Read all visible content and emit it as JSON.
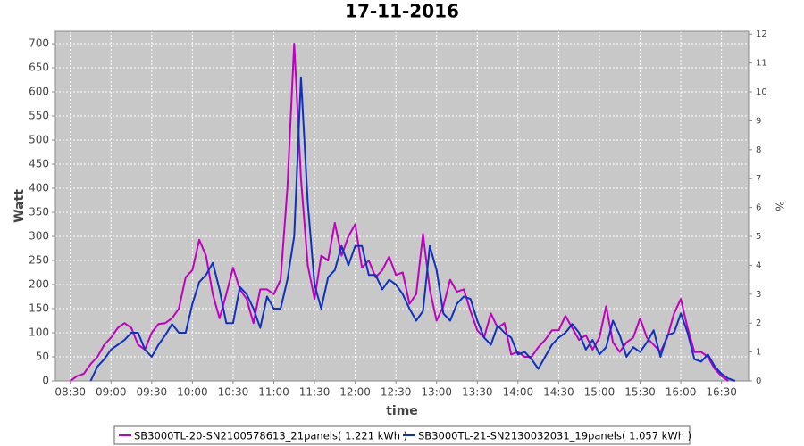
{
  "chart_data": {
    "type": "line",
    "title": "17-11-2016",
    "xlabel": "time",
    "ylabel": "Watt",
    "y2label": "%",
    "x": [
      "08:30",
      "08:35",
      "08:40",
      "08:45",
      "08:50",
      "08:55",
      "09:00",
      "09:05",
      "09:10",
      "09:15",
      "09:20",
      "09:25",
      "09:30",
      "09:35",
      "09:40",
      "09:45",
      "09:50",
      "09:55",
      "10:00",
      "10:05",
      "10:10",
      "10:15",
      "10:20",
      "10:25",
      "10:30",
      "10:35",
      "10:40",
      "10:45",
      "10:50",
      "10:55",
      "11:00",
      "11:05",
      "11:10",
      "11:15",
      "11:20",
      "11:25",
      "11:30",
      "11:35",
      "11:40",
      "11:45",
      "11:50",
      "11:55",
      "12:00",
      "12:05",
      "12:10",
      "12:15",
      "12:20",
      "12:25",
      "12:30",
      "12:35",
      "12:40",
      "12:45",
      "12:50",
      "12:55",
      "13:00",
      "13:05",
      "13:10",
      "13:15",
      "13:20",
      "13:25",
      "13:30",
      "13:35",
      "13:40",
      "13:45",
      "13:50",
      "13:55",
      "14:00",
      "14:05",
      "14:10",
      "14:15",
      "14:20",
      "14:25",
      "14:30",
      "14:35",
      "14:40",
      "14:45",
      "14:50",
      "14:55",
      "15:00",
      "15:05",
      "15:10",
      "15:15",
      "15:20",
      "15:25",
      "15:30",
      "15:35",
      "15:40",
      "15:45",
      "15:50",
      "15:55",
      "16:00",
      "16:05",
      "16:10",
      "16:15",
      "16:20",
      "16:25",
      "16:30",
      "16:35",
      "16:40"
    ],
    "series": [
      {
        "name": "SB3000TL-20-SN2100578613_21panels( 1.221 kWh )",
        "color": "#c000c0",
        "values": [
          0,
          10,
          15,
          35,
          50,
          75,
          90,
          110,
          120,
          110,
          75,
          65,
          100,
          118,
          120,
          130,
          150,
          215,
          230,
          293,
          260,
          180,
          130,
          180,
          235,
          190,
          170,
          120,
          190,
          190,
          180,
          210,
          400,
          700,
          420,
          240,
          170,
          260,
          250,
          328,
          260,
          300,
          325,
          235,
          250,
          215,
          230,
          258,
          220,
          225,
          160,
          180,
          305,
          190,
          125,
          155,
          210,
          185,
          190,
          145,
          105,
          90,
          140,
          110,
          120,
          55,
          60,
          50,
          50,
          70,
          85,
          105,
          105,
          135,
          110,
          85,
          95,
          65,
          90,
          155,
          80,
          60,
          80,
          90,
          130,
          90,
          75,
          60,
          90,
          140,
          170,
          110,
          60,
          60,
          50,
          25,
          10,
          0,
          null
        ]
      },
      {
        "name": "SB3000TL-21-SN2130032031_19panels( 1.057 kWh )",
        "color": "#1030c0",
        "values": [
          null,
          null,
          null,
          0,
          30,
          45,
          65,
          75,
          85,
          100,
          100,
          65,
          50,
          75,
          95,
          118,
          100,
          100,
          160,
          205,
          220,
          245,
          190,
          120,
          120,
          195,
          180,
          150,
          110,
          175,
          150,
          150,
          210,
          300,
          630,
          370,
          200,
          150,
          215,
          230,
          280,
          240,
          280,
          280,
          220,
          220,
          190,
          210,
          200,
          180,
          150,
          125,
          145,
          280,
          230,
          140,
          125,
          160,
          175,
          170,
          125,
          90,
          75,
          115,
          100,
          90,
          55,
          60,
          45,
          25,
          50,
          75,
          90,
          100,
          118,
          100,
          65,
          85,
          55,
          70,
          125,
          95,
          50,
          70,
          60,
          80,
          105,
          50,
          95,
          100,
          140,
          100,
          45,
          40,
          55,
          30,
          15,
          5,
          0
        ]
      }
    ],
    "xlim": [
      "08:19",
      "16:50"
    ],
    "xticks": [
      "08:30",
      "09:00",
      "09:30",
      "10:00",
      "10:30",
      "11:00",
      "11:30",
      "12:00",
      "12:30",
      "13:00",
      "13:30",
      "14:00",
      "14:30",
      "15:00",
      "15:30",
      "16:00",
      "16:30"
    ],
    "ylim": [
      0,
      726
    ],
    "yticks": [
      0,
      50,
      100,
      150,
      200,
      250,
      300,
      350,
      400,
      450,
      500,
      550,
      600,
      650,
      700
    ],
    "y2lim": [
      0,
      12.1
    ],
    "y2ticks": [
      0,
      1,
      2,
      3,
      4,
      5,
      6,
      7,
      8,
      9,
      10,
      11,
      12
    ],
    "grid": true,
    "plot_background": "#c8c8c8"
  }
}
